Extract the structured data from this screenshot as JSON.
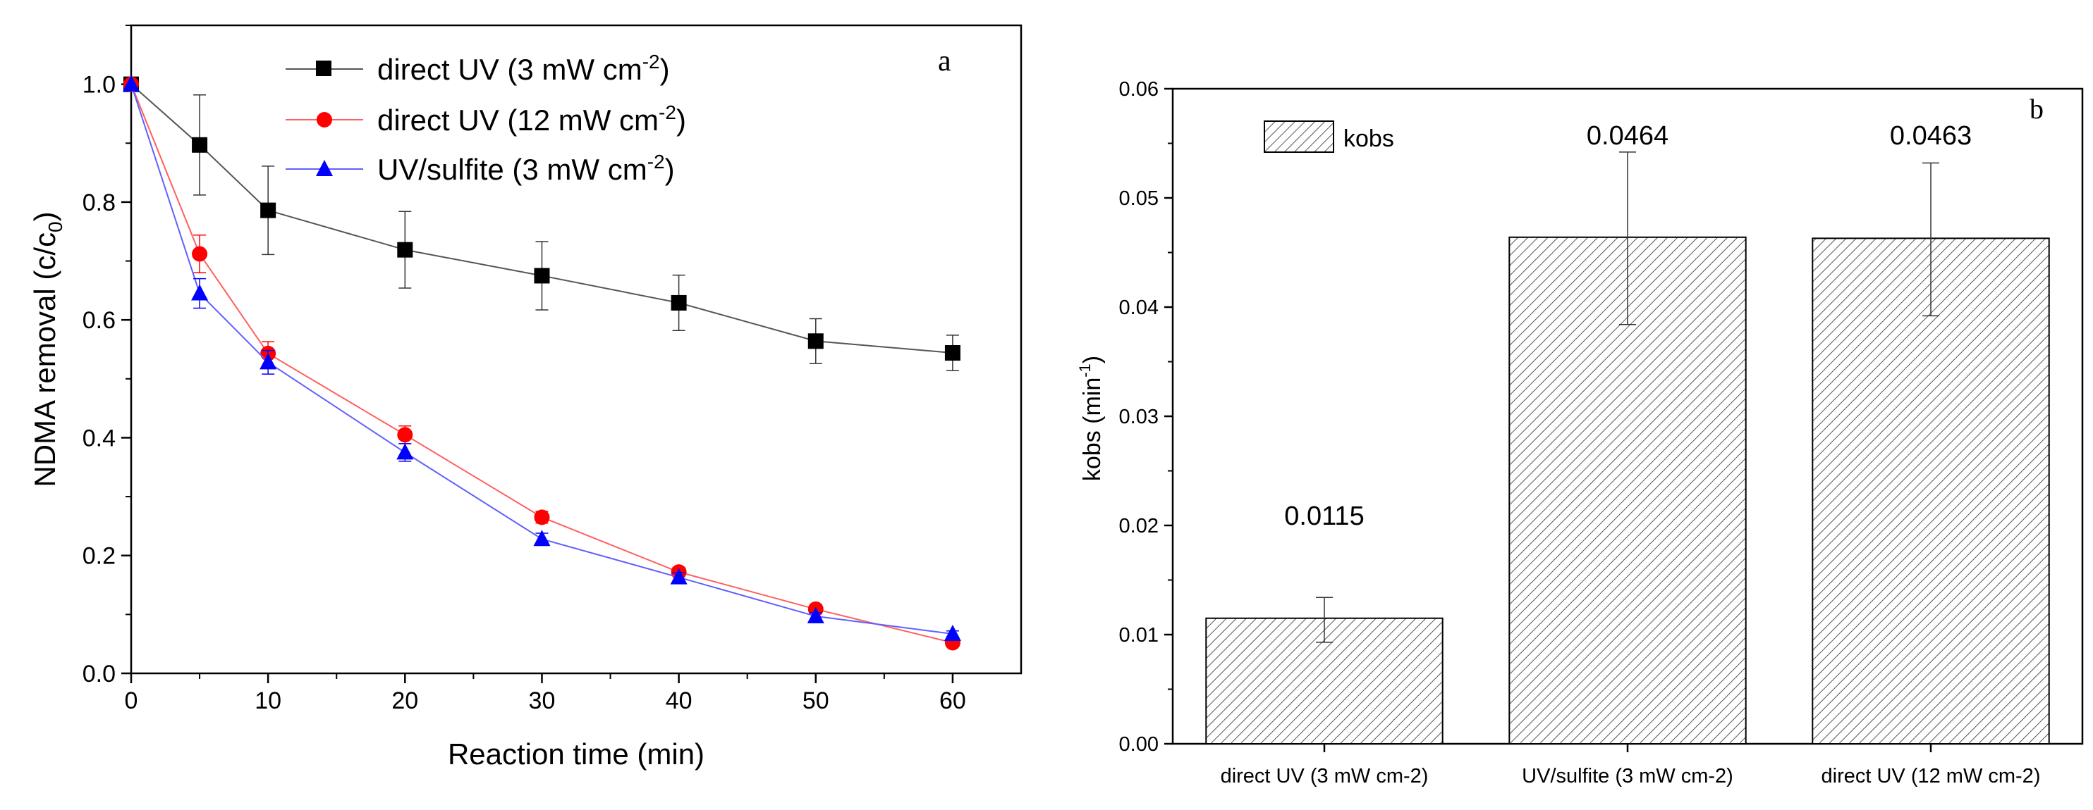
{
  "chart_data": [
    {
      "type": "line",
      "panel_label": "a",
      "xlabel": "Reaction time (min)",
      "ylabel_main": "NDMA removal (c/c",
      "ylabel_sub": "0",
      "ylabel_close": ")",
      "xlim": [
        0,
        65
      ],
      "ylim": [
        0,
        1.1
      ],
      "xticks": [
        0,
        10,
        20,
        30,
        40,
        50,
        60
      ],
      "yticks": [
        0.0,
        0.2,
        0.4,
        0.6,
        0.8,
        1.0
      ],
      "ytick_labels": [
        "0.0",
        "0.2",
        "0.4",
        "0.6",
        "0.8",
        "1.0"
      ],
      "legend_position": "top-center",
      "series": [
        {
          "name": "direct UV (3 mW cm",
          "sup": "-2",
          "close": ")",
          "color": "#000000",
          "marker": "square",
          "x": [
            0,
            5,
            10,
            20,
            30,
            40,
            50,
            60
          ],
          "y": [
            1.0,
            0.897,
            0.786,
            0.719,
            0.675,
            0.629,
            0.564,
            0.544
          ],
          "err": [
            0,
            0.085,
            0.075,
            0.065,
            0.058,
            0.047,
            0.038,
            0.03
          ]
        },
        {
          "name": "direct UV (12 mW cm",
          "sup": "-2",
          "close": ")",
          "color": "#ff0000",
          "marker": "circle",
          "x": [
            0,
            5,
            10,
            20,
            30,
            40,
            50,
            60
          ],
          "y": [
            1.0,
            0.712,
            0.543,
            0.405,
            0.265,
            0.172,
            0.109,
            0.052
          ],
          "err": [
            0,
            0.032,
            0.02,
            0.015,
            0.01,
            0.008,
            0.007,
            0.005
          ]
        },
        {
          "name": "UV/sulfite (3 mW cm",
          "sup": "-2",
          "close": ")",
          "color": "#0000ff",
          "marker": "triangle",
          "x": [
            0,
            5,
            10,
            20,
            30,
            40,
            50,
            60
          ],
          "y": [
            1.0,
            0.645,
            0.528,
            0.375,
            0.228,
            0.163,
            0.097,
            0.067
          ],
          "err": [
            0,
            0.025,
            0.02,
            0.015,
            0.01,
            0.008,
            0.006,
            0.005
          ]
        }
      ]
    },
    {
      "type": "bar",
      "panel_label": "b",
      "ylabel_main": "kobs (min",
      "ylabel_sup": "-1",
      "ylabel_close": ")",
      "xlabel": "",
      "ylim": [
        0,
        0.06
      ],
      "yticks": [
        0.0,
        0.01,
        0.02,
        0.03,
        0.04,
        0.05,
        0.06
      ],
      "ytick_labels": [
        "0.00",
        "0.01",
        "0.02",
        "0.03",
        "0.04",
        "0.05",
        "0.06"
      ],
      "categories": [
        "direct UV (3 mW cm-2)",
        "UV/sulfite  (3 mW cm-2)",
        "direct UV (12 mW cm-2)"
      ],
      "values": [
        0.0115,
        0.0464,
        0.0463
      ],
      "value_labels": [
        "0.0115",
        "0.0464",
        "0.0463"
      ],
      "err_low": [
        0.0093,
        0.0384,
        0.0392
      ],
      "err_high": [
        0.0134,
        0.0542,
        0.0532
      ],
      "legend_label": "kobs",
      "legend_position": "top-left",
      "fill": "hatched"
    }
  ]
}
